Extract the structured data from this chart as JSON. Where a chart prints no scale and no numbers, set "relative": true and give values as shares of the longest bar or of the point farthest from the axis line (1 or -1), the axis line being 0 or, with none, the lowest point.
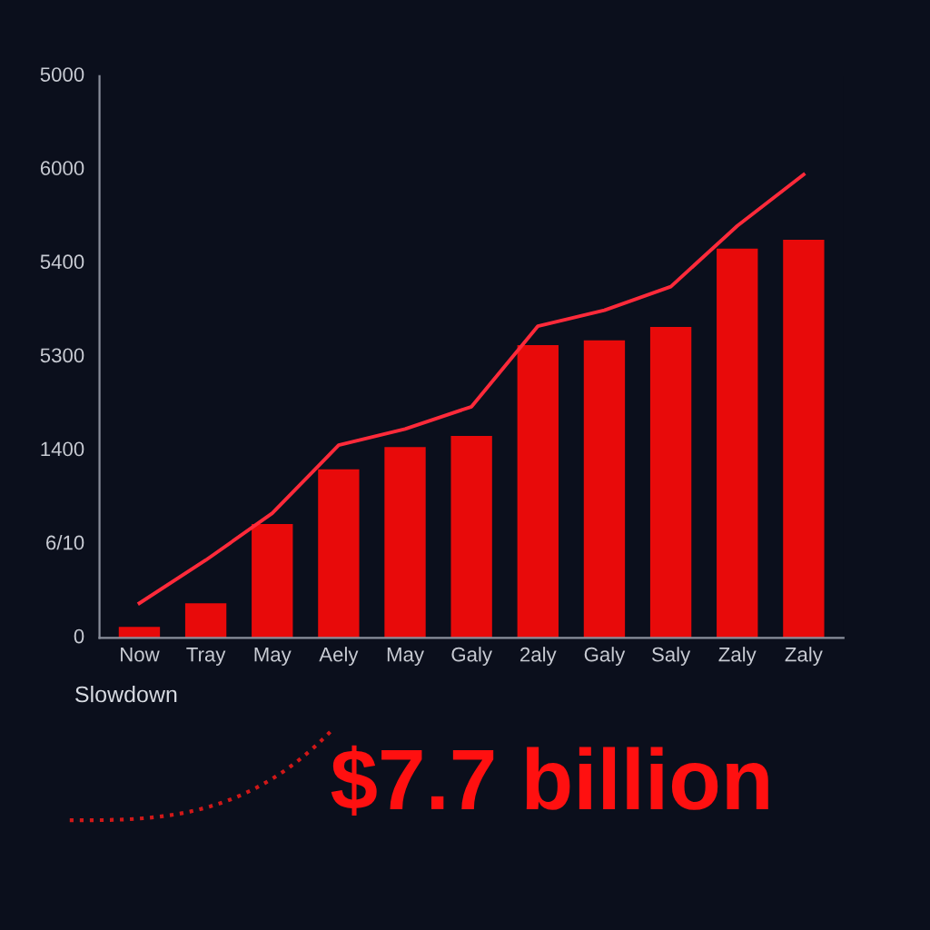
{
  "chart_data": {
    "type": "bar",
    "relative": true,
    "categories": [
      "Now",
      "Tray",
      "May",
      "Aely",
      "May",
      "Galy",
      "2aly",
      "Galy",
      "Saly",
      "Zaly",
      "Zaly"
    ],
    "series": [
      {
        "color": "#e80a0a",
        "values": [
          0.024,
          0.075,
          0.246,
          0.364,
          0.412,
          0.436,
          0.632,
          0.642,
          0.671,
          0.84,
          0.859
        ]
      },
      {
        "type": "line",
        "color": "#ff2a3a",
        "values": [
          0.075,
          0.168,
          0.269,
          0.416,
          0.451,
          0.499,
          0.673,
          0.707,
          0.758,
          0.889,
          1
        ]
      }
    ],
    "legend": false,
    "marker": "none",
    "line_style": "solid",
    "annotations": [
      "5000",
      "6000",
      "5400",
      "5300",
      "1400",
      "6/10",
      "0",
      "Slowdown",
      "$7.7 billion"
    ]
  }
}
